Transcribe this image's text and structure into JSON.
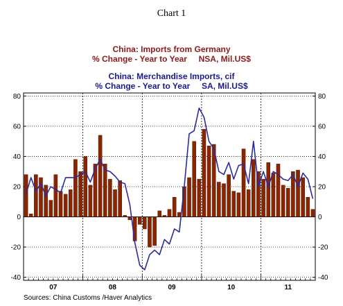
{
  "heading": "Chart 1",
  "source": "Sources:  China Customs /Haver Analytics",
  "colors": {
    "bars": "#8b2500",
    "line": "#2a2aa0",
    "title1": "#8b1a1a",
    "title2": "#1a1a8b"
  },
  "chart_data": {
    "type": "bar+line",
    "series": [
      {
        "name": "China: Imports from Germany",
        "subtitle": "% Change - Year to Year     NSA, Mil.US$",
        "render": "bar",
        "values": [
          28,
          2,
          28,
          26,
          21,
          11,
          28,
          17,
          15,
          18,
          38,
          30,
          40,
          21,
          35,
          54,
          35,
          25,
          18,
          24,
          1,
          -2,
          -16,
          -5,
          -8,
          -20,
          -19,
          4,
          1,
          5,
          13,
          3,
          20,
          26,
          50,
          25,
          58,
          47,
          48,
          23,
          22,
          28,
          17,
          16,
          45,
          18,
          38,
          30,
          25,
          36,
          29,
          35,
          21,
          19,
          30,
          31,
          26,
          13,
          5
        ]
      },
      {
        "name": "China: Merchandise Imports, cif",
        "subtitle": "% Change - Year to Year     SA, Mil.US$",
        "render": "line",
        "values": [
          15,
          26,
          17,
          22,
          14,
          20,
          18,
          16,
          26,
          26,
          26,
          28,
          30,
          23,
          32,
          38,
          31,
          30,
          27,
          23,
          22,
          8,
          -17,
          -32,
          -35,
          -25,
          -22,
          -25,
          -15,
          -18,
          -8,
          -10,
          20,
          55,
          57,
          72,
          66,
          50,
          45,
          30,
          28,
          36,
          25,
          34,
          35,
          22,
          50,
          20,
          30,
          20,
          30,
          28,
          25,
          24,
          28,
          20,
          29,
          25,
          12
        ]
      }
    ],
    "x_labels": [
      "07",
      "08",
      "09",
      "10",
      "11"
    ],
    "y_ticks": [
      80,
      60,
      40,
      20,
      0,
      -20,
      -40
    ],
    "ylim": [
      -42,
      82
    ],
    "grid": true,
    "grid_style": "dotted"
  }
}
